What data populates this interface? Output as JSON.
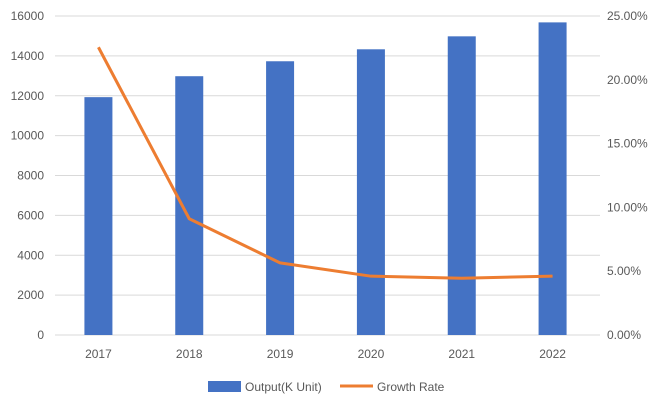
{
  "chart_data": {
    "type": "bar+line",
    "title": "",
    "categories": [
      "2017",
      "2018",
      "2019",
      "2020",
      "2021",
      "2022"
    ],
    "series": [
      {
        "name": "Output(K Unit)",
        "type": "bar",
        "axis": "left",
        "color": "#4472C4",
        "values": [
          11930,
          12980,
          13730,
          14330,
          14980,
          15680
        ]
      },
      {
        "name": "Growth Rate",
        "type": "line",
        "axis": "right",
        "color": "#ED7D31",
        "values": [
          22.55,
          9.11,
          5.65,
          4.61,
          4.45,
          4.61
        ]
      }
    ],
    "left_axis": {
      "ylim": [
        0,
        16000
      ],
      "ticks": [
        "0",
        "2000",
        "4000",
        "6000",
        "8000",
        "10000",
        "12000",
        "14000",
        "16000"
      ]
    },
    "right_axis": {
      "ylim": [
        0,
        25
      ],
      "unit": "percent",
      "ticks": [
        "0.00%",
        "5.00%",
        "10.00%",
        "15.00%",
        "20.00%",
        "25.00%"
      ]
    },
    "grid": true,
    "legend": "bottom"
  }
}
